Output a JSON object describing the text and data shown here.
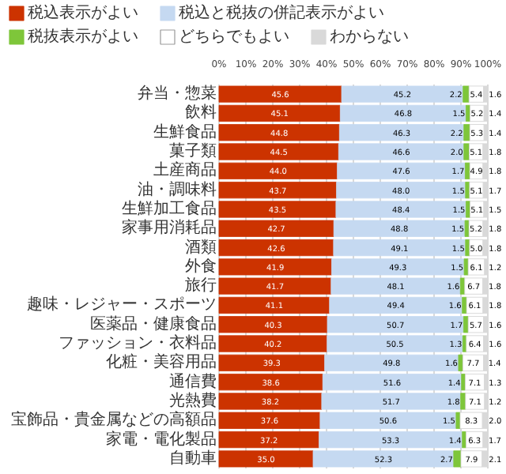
{
  "chart_data": {
    "type": "bar",
    "orientation": "horizontal",
    "stacked": true,
    "grid": "x",
    "legend": "top",
    "categories": [
      "弁当・惣菜",
      "飲料",
      "生鮮食品",
      "菓子類",
      "土産商品",
      "油・調味料",
      "生鮮加工食品",
      "家事用消耗品",
      "酒類",
      "外食",
      "旅行",
      "趣味・レジャー・スポーツ",
      "医薬品・健康食品",
      "ファッション・衣料品",
      "化粧・美容用品",
      "通信費",
      "光熱費",
      "宝飾品・貴金属などの高額品",
      "家電・電化製品",
      "自動車"
    ],
    "xlim": [
      0,
      100
    ],
    "xticks": [
      {
        "value": 0,
        "label": "0%"
      },
      {
        "value": 10,
        "label": "10%"
      },
      {
        "value": 20,
        "label": "20%"
      },
      {
        "value": 30,
        "label": "30%"
      },
      {
        "value": 40,
        "label": "40%"
      },
      {
        "value": 50,
        "label": "50%"
      },
      {
        "value": 60,
        "label": "60%"
      },
      {
        "value": 70,
        "label": "70%"
      },
      {
        "value": 80,
        "label": "80%"
      },
      {
        "value": 90,
        "label": "90%"
      },
      {
        "value": 100,
        "label": "100%"
      }
    ],
    "series": [
      {
        "name": "税込表示がよい",
        "color": "#cc3300",
        "values": [
          45.6,
          45.1,
          44.8,
          44.5,
          44.0,
          43.7,
          43.5,
          42.7,
          42.6,
          41.9,
          41.7,
          41.1,
          40.3,
          40.2,
          39.3,
          38.6,
          38.2,
          37.6,
          37.2,
          35.0
        ],
        "value_labels": [
          "45.6",
          "45.1",
          "44.8",
          "44.5",
          "44.0",
          "43.7",
          "43.5",
          "42.7",
          "42.6",
          "41.9",
          "41.7",
          "41.1",
          "40.3",
          "40.2",
          "39.3",
          "38.6",
          "38.2",
          "37.6",
          "37.2",
          "35.0"
        ]
      },
      {
        "name": "税込と税抜の併記表示がよい",
        "color": "#c5d9f1",
        "values": [
          45.2,
          46.8,
          46.3,
          46.6,
          47.6,
          48.0,
          48.4,
          48.8,
          49.1,
          49.3,
          48.1,
          49.4,
          50.7,
          50.5,
          49.8,
          51.6,
          51.7,
          50.6,
          53.3,
          52.3
        ],
        "value_labels": [
          "45.2",
          "46.8",
          "46.3",
          "46.6",
          "47.6",
          "48.0",
          "48.4",
          "48.8",
          "49.1",
          "49.3",
          "48.1",
          "49.4",
          "50.7",
          "50.5",
          "49.8",
          "51.6",
          "51.7",
          "50.6",
          "53.3",
          "52.3"
        ]
      },
      {
        "name": "税抜表示がよい",
        "color": "#7ec63a",
        "values": [
          2.2,
          1.5,
          2.2,
          2.0,
          1.7,
          1.5,
          1.5,
          1.5,
          1.5,
          1.5,
          1.6,
          1.6,
          1.7,
          1.3,
          1.6,
          1.4,
          1.8,
          1.5,
          1.4,
          2.7
        ],
        "value_labels": [
          "2.2",
          "1.5",
          "2.2",
          "2.0",
          "1.7",
          "1.5",
          "1.5",
          "1.5",
          "1.5",
          "1.5",
          "1.6",
          "1.6",
          "1.7",
          "1.3",
          "1.6",
          "1.4",
          "1.8",
          "1.5",
          "1.4",
          "2.7"
        ]
      },
      {
        "name": "どちらでもよい",
        "color": "#ffffff",
        "values": [
          5.4,
          5.2,
          5.3,
          5.1,
          4.9,
          5.1,
          5.1,
          5.2,
          5.0,
          6.1,
          6.7,
          6.1,
          5.7,
          6.4,
          7.7,
          7.1,
          7.1,
          8.3,
          6.3,
          7.9
        ],
        "value_labels": [
          "5.4",
          "5.2",
          "5.3",
          "5.1",
          "4.9",
          "5.1",
          "5.1",
          "5.2",
          "5.0",
          "6.1",
          "6.7",
          "6.1",
          "5.7",
          "6.4",
          "7.7",
          "7.1",
          "7.1",
          "8.3",
          "6.3",
          "7.9"
        ]
      },
      {
        "name": "わからない",
        "color": "#d9d9d9",
        "values": [
          1.6,
          1.4,
          1.4,
          1.8,
          1.8,
          1.7,
          1.5,
          1.8,
          1.8,
          1.2,
          1.8,
          1.8,
          1.6,
          1.6,
          1.4,
          1.3,
          1.2,
          2.0,
          1.7,
          2.1
        ],
        "value_labels": [
          "1.6",
          "1.4",
          "1.4",
          "1.8",
          "1.8",
          "1.7",
          "1.5",
          "1.8",
          "1.8",
          "1.2",
          "1.8",
          "1.8",
          "1.6",
          "1.6",
          "1.4",
          "1.3",
          "1.2",
          "2.0",
          "1.7",
          "2.1"
        ]
      }
    ]
  }
}
